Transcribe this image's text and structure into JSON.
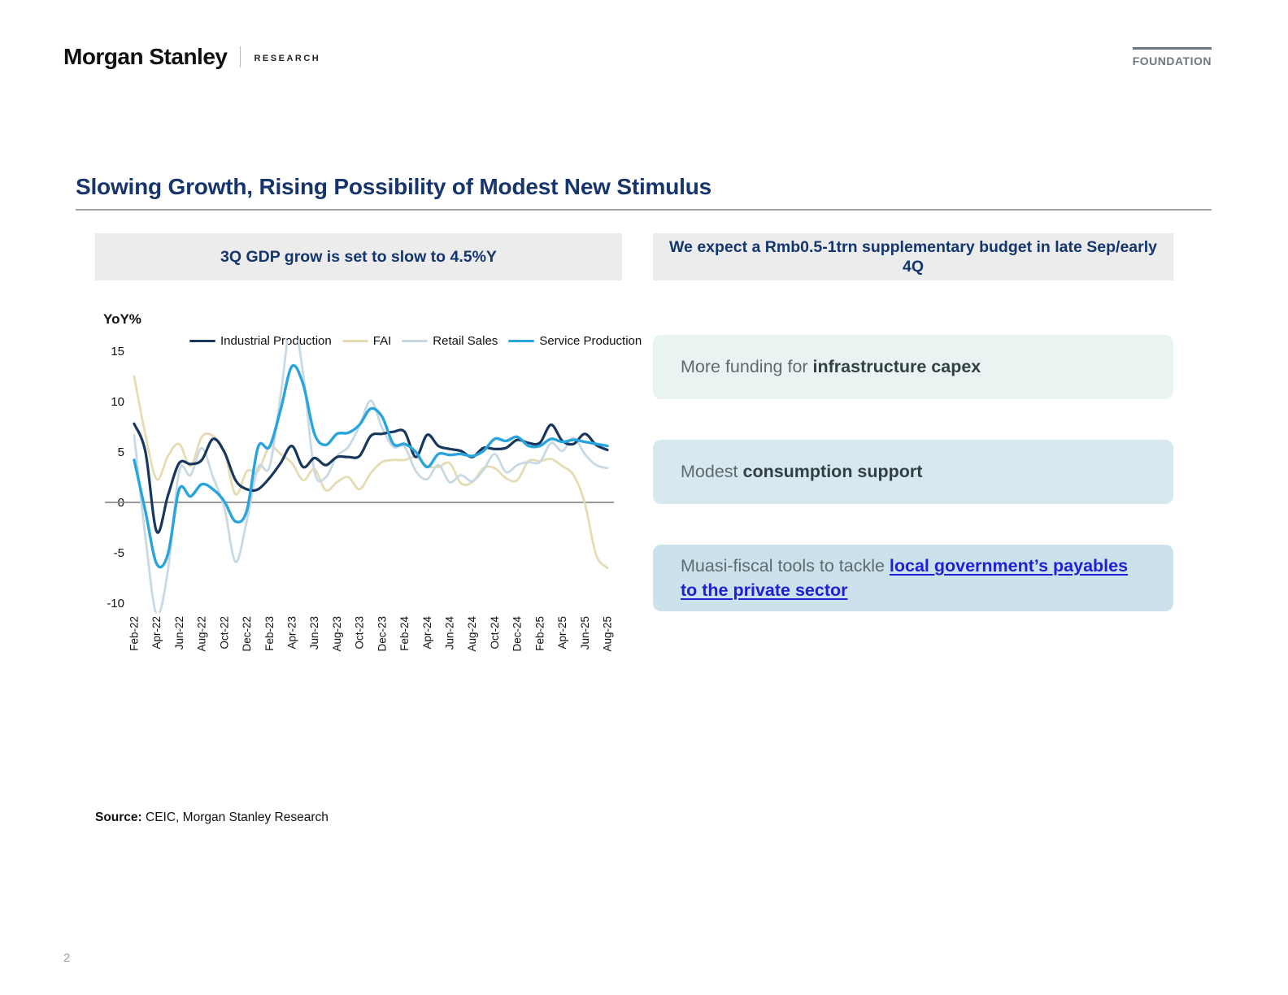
{
  "header": {
    "brand": "Morgan Stanley",
    "division": "RESEARCH",
    "badge": "FOUNDATION"
  },
  "title": "Slowing Growth, Rising Possibility of Modest New Stimulus",
  "left_panel": {
    "heading": "3Q GDP grow is set to slow to 4.5%Y"
  },
  "right_panel": {
    "heading": "We expect a Rmb0.5-1trn supplementary budget in late Sep/early 4Q",
    "boxes": [
      {
        "prefix": "More funding for ",
        "bold": "infrastructure capex",
        "is_link": false
      },
      {
        "prefix": "Modest ",
        "bold": "consumption support",
        "is_link": false
      },
      {
        "prefix": "Muasi-fiscal tools to tackle ",
        "bold": "local government’s payables to the private sector",
        "is_link": true
      }
    ]
  },
  "source": {
    "label": "Source:",
    "text": " CEIC, Morgan Stanley Research"
  },
  "page_number": "2",
  "chart_data": {
    "type": "line",
    "title": "3Q GDP grow is set to slow to 4.5%Y",
    "ylabel": "YoY%",
    "ylim": [
      -10,
      15
    ],
    "yticks": [
      15,
      10,
      5,
      0,
      -5,
      -10
    ],
    "grid": false,
    "zero_line": true,
    "legend_position": "top",
    "x": [
      "Feb-22",
      "Mar-22",
      "Apr-22",
      "May-22",
      "Jun-22",
      "Jul-22",
      "Aug-22",
      "Sep-22",
      "Oct-22",
      "Nov-22",
      "Dec-22",
      "Jan-23",
      "Feb-23",
      "Mar-23",
      "Apr-23",
      "May-23",
      "Jun-23",
      "Jul-23",
      "Aug-23",
      "Sep-23",
      "Oct-23",
      "Nov-23",
      "Dec-23",
      "Jan-24",
      "Feb-24",
      "Mar-24",
      "Apr-24",
      "May-24",
      "Jun-24",
      "Jul-24",
      "Aug-24",
      "Sep-24",
      "Oct-24",
      "Nov-24",
      "Dec-24",
      "Jan-25",
      "Feb-25",
      "Mar-25",
      "Apr-25",
      "May-25",
      "Jun-25",
      "Jul-25",
      "Aug-25"
    ],
    "xtick_every": 2,
    "series": [
      {
        "name": "Industrial Production",
        "color": "#17375e",
        "values": [
          7.8,
          5.0,
          -2.9,
          0.7,
          3.9,
          3.8,
          4.2,
          6.3,
          5.0,
          2.2,
          1.3,
          1.3,
          2.4,
          3.9,
          5.6,
          3.5,
          4.4,
          3.7,
          4.5,
          4.5,
          4.6,
          6.6,
          6.8,
          7.0,
          7.0,
          4.5,
          6.7,
          5.6,
          5.3,
          5.1,
          4.5,
          5.4,
          5.3,
          5.4,
          6.2,
          5.9,
          5.9,
          7.7,
          6.1,
          5.8,
          6.8,
          5.7,
          5.2
        ]
      },
      {
        "name": "FAI",
        "color": "#e6dcb4",
        "values": [
          12.5,
          6.7,
          2.3,
          4.6,
          5.8,
          3.6,
          6.5,
          6.6,
          5.0,
          0.8,
          3.1,
          3.1,
          5.5,
          4.8,
          3.9,
          2.2,
          3.3,
          1.2,
          2.0,
          2.5,
          1.3,
          2.9,
          4.0,
          4.2,
          4.2,
          4.5,
          3.6,
          3.5,
          3.9,
          1.9,
          2.0,
          3.4,
          3.4,
          2.4,
          2.2,
          4.1,
          4.1,
          4.3,
          3.6,
          2.7,
          -0.1,
          -5.2,
          -6.5
        ]
      },
      {
        "name": "Retail Sales",
        "color": "#c9d9e3",
        "values": [
          6.7,
          -3.5,
          -11.1,
          -6.7,
          3.1,
          2.7,
          5.4,
          2.5,
          -0.5,
          -5.9,
          -1.8,
          3.5,
          3.5,
          10.6,
          18.4,
          12.7,
          3.1,
          2.5,
          4.6,
          5.5,
          7.6,
          10.1,
          7.4,
          5.5,
          5.5,
          3.1,
          2.3,
          3.7,
          2.0,
          2.7,
          2.1,
          3.2,
          4.8,
          3.0,
          3.7,
          4.0,
          4.0,
          5.9,
          5.1,
          6.4,
          4.8,
          3.7,
          3.4
        ]
      },
      {
        "name": "Service Production",
        "color": "#29a4dc",
        "values": [
          4.2,
          -0.9,
          -6.1,
          -5.1,
          1.3,
          0.6,
          1.8,
          1.3,
          0.1,
          -1.9,
          -0.8,
          5.5,
          5.5,
          9.2,
          13.5,
          11.7,
          6.8,
          5.7,
          6.8,
          6.9,
          7.7,
          9.3,
          8.5,
          5.8,
          5.8,
          5.0,
          3.5,
          4.8,
          4.7,
          4.8,
          4.6,
          5.1,
          6.3,
          6.1,
          6.5,
          5.6,
          5.6,
          6.3,
          6.0,
          6.2,
          6.0,
          5.8,
          5.6
        ]
      }
    ]
  }
}
